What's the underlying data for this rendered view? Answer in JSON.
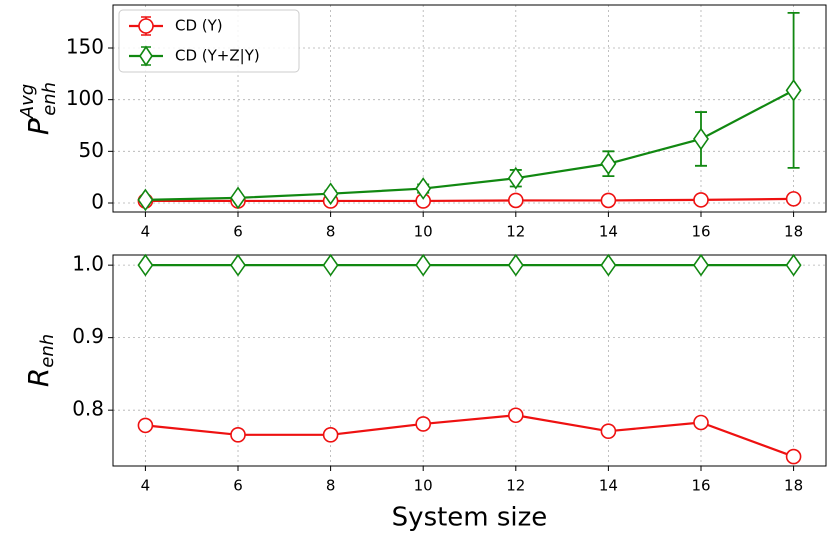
{
  "chart_data": [
    {
      "type": "line",
      "ylabel": {
        "base": "P",
        "sub": "enh",
        "sup": "Avg"
      },
      "x": [
        4,
        6,
        8,
        10,
        12,
        14,
        16,
        18
      ],
      "series": [
        {
          "name": "CD (Y)",
          "color": "#ee1111",
          "marker": "circle",
          "values": [
            2,
            2,
            2,
            2,
            2.5,
            2.5,
            3,
            4
          ],
          "errors": [
            1,
            1,
            1,
            1,
            1,
            1,
            1.5,
            2
          ]
        },
        {
          "name": "CD (Y+Z|Y)",
          "color": "#118811",
          "marker": "diamond",
          "values": [
            3,
            5,
            9,
            14,
            24,
            38,
            62,
            109
          ],
          "errors": [
            1,
            2,
            3,
            4,
            8,
            12,
            26,
            75
          ]
        }
      ],
      "xlim": [
        3.3,
        18.7
      ],
      "xticks": [
        4,
        6,
        8,
        10,
        12,
        14,
        16,
        18
      ],
      "ylim": [
        -8.7,
        191.6
      ],
      "yticks": [
        0,
        50,
        100,
        150
      ],
      "grid": true,
      "legend": "upper left"
    },
    {
      "type": "line",
      "ylabel": {
        "base": "R",
        "sub": "enh"
      },
      "xlabel": "System size",
      "x": [
        4,
        6,
        8,
        10,
        12,
        14,
        16,
        18
      ],
      "series": [
        {
          "color": "#ee1111",
          "marker": "circle",
          "values": [
            0.779,
            0.766,
            0.766,
            0.781,
            0.793,
            0.771,
            0.783,
            0.736
          ]
        },
        {
          "color": "#118811",
          "marker": "diamond",
          "values": [
            1,
            1,
            1,
            1,
            1,
            1,
            1,
            1
          ]
        }
      ],
      "xlim": [
        3.3,
        18.7
      ],
      "xticks": [
        4,
        6,
        8,
        10,
        12,
        14,
        16,
        18
      ],
      "ylim": [
        0.723,
        1.014
      ],
      "yticks": [
        0.8,
        0.9,
        {
          "value": 1,
          "label": "1.0"
        }
      ],
      "grid": true
    }
  ]
}
